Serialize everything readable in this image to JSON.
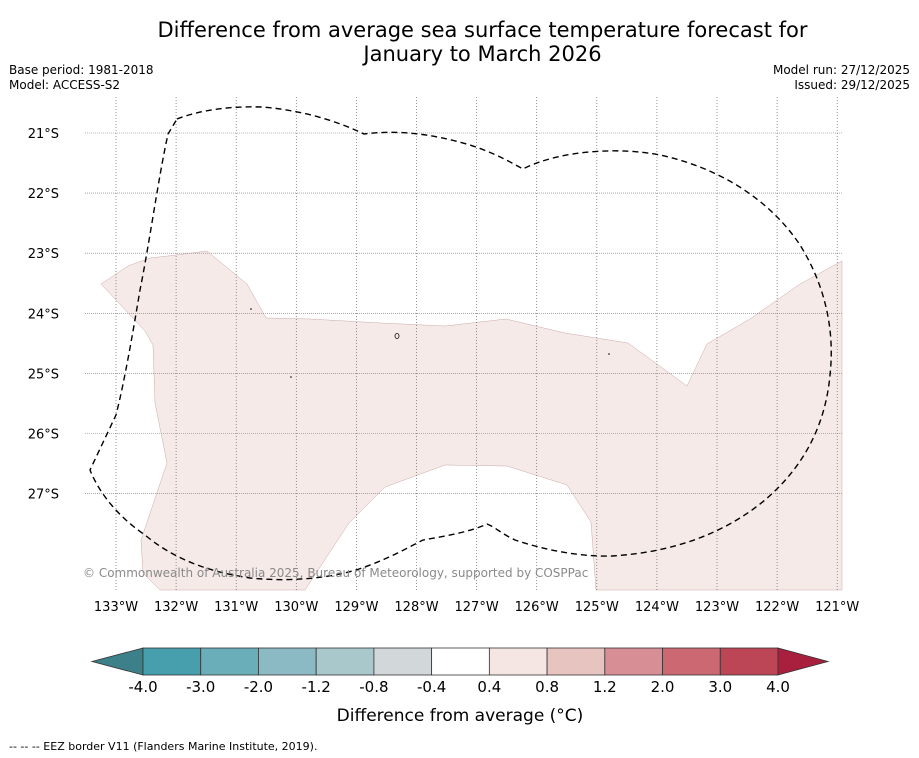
{
  "title_line1": "Difference from average sea surface temperature forecast for",
  "title_line2": "January to March 2026",
  "meta": {
    "base_period": "Base period: 1981-2018",
    "model": "Model: ACCESS-S2",
    "model_run": "Model run: 27/12/2025",
    "issued": "Issued: 29/12/2025"
  },
  "copyright": "© Commonwealth of Australia 2025, Bureau of Meteorology, supported by COSPPac",
  "footnote": "-- -- -- EEZ border V11 (Flanders Marine Institute, 2019).",
  "colorbar": {
    "title": "Difference from average (°C)",
    "labels": [
      "-4.0",
      "-3.0",
      "-2.0",
      "-1.2",
      "-0.8",
      "-0.4",
      "0.4",
      "0.8",
      "1.2",
      "2.0",
      "3.0",
      "4.0"
    ],
    "colors": [
      "#479ead",
      "#6aaeb9",
      "#8bbac4",
      "#a8c8cc",
      "#d2d7da",
      "#ffffff",
      "#f5e6e4",
      "#e8c4c0",
      "#d78e94",
      "#cc6871",
      "#bd4656"
    ],
    "low_extend_color": "#3c8089",
    "high_extend_color": "#a8203e"
  },
  "map": {
    "lon_labels": [
      "133°W",
      "132°W",
      "131°W",
      "130°W",
      "129°W",
      "128°W",
      "127°W",
      "126°W",
      "125°W",
      "124°W",
      "123°W",
      "122°W",
      "121°W"
    ],
    "lat_labels": [
      "21°S",
      "22°S",
      "23°S",
      "24°S",
      "25°S",
      "26°S",
      "27°S"
    ],
    "anomaly_fill_color": "#f5eae8"
  }
}
